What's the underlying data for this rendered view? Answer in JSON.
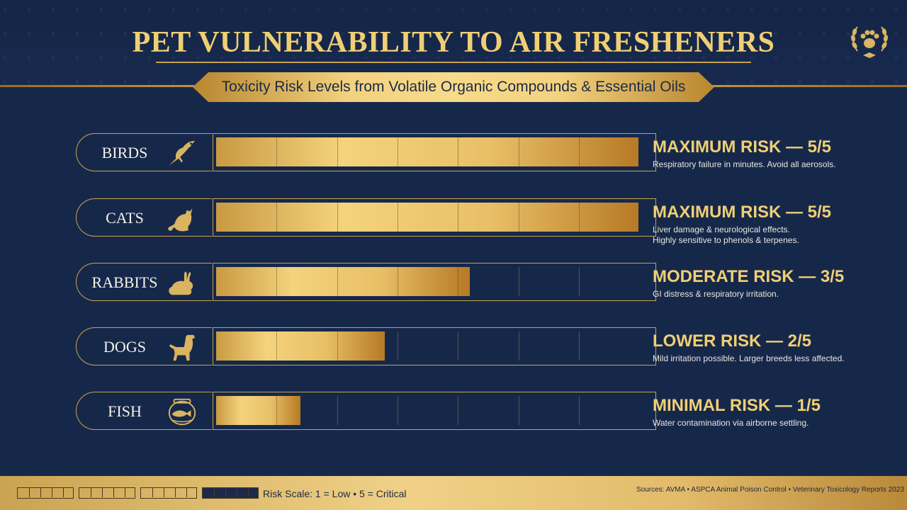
{
  "header": {
    "title": "PET VULNERABILITY TO AIR FRESHENERS",
    "subtitle": "Toxicity Risk Levels from Volatile Organic Compounds & Essential Oils",
    "logo_icon": "paw-laurel-icon"
  },
  "chart_data": {
    "type": "bar",
    "title": "PET VULNERABILITY TO AIR FRESHENERS",
    "subtitle": "Toxicity Risk Levels from Volatile Organic Compounds & Essential Oils",
    "categories": [
      "BIRDS",
      "CATS",
      "RABBITS",
      "DOGS",
      "FISH"
    ],
    "values": [
      5,
      5,
      3,
      2,
      1
    ],
    "xlim": [
      0,
      5
    ],
    "orientation": "horizontal",
    "icons": [
      "bird-icon",
      "cat-icon",
      "rabbit-icon",
      "dog-icon",
      "fishbowl-icon"
    ],
    "risk_labels": [
      "MAXIMUM RISK — 5/5",
      "MAXIMUM RISK — 5/5",
      "MODERATE RISK — 3/5",
      "LOWER RISK — 2/5",
      "MINIMAL RISK — 1/5"
    ],
    "descriptions": [
      [
        "Respiratory failure in minutes. Avoid all aerosols."
      ],
      [
        "Liver damage & neurological effects.",
        "Highly sensitive to phenols & terpenes."
      ],
      [
        "GI distress & respiratory irritation."
      ],
      [
        "Mild irritation possible. Larger breeds less affected."
      ],
      [
        "Water contamination via airborne settling."
      ]
    ]
  },
  "footer": {
    "legend_text": "Risk Scale: 1 = Low  •  5 = Critical",
    "sources": "Sources: AVMA • ASPCA Animal Poison Control • Veterinary Toxicology Reports 2023"
  },
  "colors": {
    "background": "#16284a",
    "gold": "#e9c46f",
    "gold_dark": "#b77a25"
  }
}
